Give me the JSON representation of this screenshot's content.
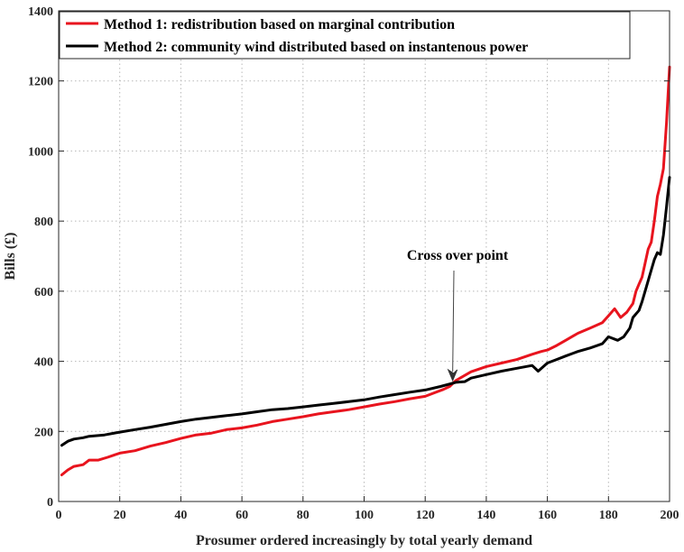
{
  "chart_data": {
    "type": "line",
    "xlabel": "Prosumer ordered increasingly by total yearly demand",
    "ylabel": "Bills (£)",
    "xlim": [
      0,
      200
    ],
    "ylim": [
      0,
      1400
    ],
    "xticks": [
      0,
      20,
      40,
      60,
      80,
      100,
      120,
      140,
      160,
      180,
      200
    ],
    "yticks": [
      0,
      200,
      400,
      600,
      800,
      1000,
      1200,
      1400
    ],
    "grid": true,
    "legend_position": "top-left",
    "series": [
      {
        "name": "Method 1: redistribution based on marginal contribution",
        "color": "#e8141e",
        "points": [
          [
            1,
            76
          ],
          [
            3,
            90
          ],
          [
            5,
            100
          ],
          [
            8,
            105
          ],
          [
            10,
            118
          ],
          [
            13,
            118
          ],
          [
            16,
            126
          ],
          [
            20,
            138
          ],
          [
            25,
            145
          ],
          [
            30,
            158
          ],
          [
            35,
            168
          ],
          [
            40,
            180
          ],
          [
            45,
            190
          ],
          [
            50,
            195
          ],
          [
            55,
            205
          ],
          [
            60,
            210
          ],
          [
            65,
            218
          ],
          [
            70,
            228
          ],
          [
            75,
            235
          ],
          [
            80,
            242
          ],
          [
            85,
            250
          ],
          [
            90,
            256
          ],
          [
            95,
            262
          ],
          [
            100,
            270
          ],
          [
            105,
            278
          ],
          [
            110,
            285
          ],
          [
            115,
            293
          ],
          [
            120,
            300
          ],
          [
            123,
            310
          ],
          [
            126,
            320
          ],
          [
            128,
            328
          ],
          [
            130,
            345
          ],
          [
            132,
            355
          ],
          [
            135,
            370
          ],
          [
            140,
            385
          ],
          [
            145,
            395
          ],
          [
            150,
            405
          ],
          [
            155,
            420
          ],
          [
            158,
            428
          ],
          [
            160,
            432
          ],
          [
            163,
            445
          ],
          [
            166,
            460
          ],
          [
            170,
            480
          ],
          [
            174,
            495
          ],
          [
            178,
            510
          ],
          [
            180,
            530
          ],
          [
            182,
            550
          ],
          [
            184,
            525
          ],
          [
            186,
            540
          ],
          [
            188,
            565
          ],
          [
            189,
            600
          ],
          [
            190,
            620
          ],
          [
            191,
            640
          ],
          [
            192,
            680
          ],
          [
            193,
            720
          ],
          [
            194,
            740
          ],
          [
            195,
            800
          ],
          [
            196,
            870
          ],
          [
            197,
            905
          ],
          [
            198,
            950
          ],
          [
            199,
            1080
          ],
          [
            200,
            1240
          ]
        ]
      },
      {
        "name": "Method 2: community wind distributed based on instantenous power",
        "color": "#000000",
        "points": [
          [
            1,
            160
          ],
          [
            3,
            172
          ],
          [
            5,
            178
          ],
          [
            8,
            182
          ],
          [
            10,
            186
          ],
          [
            15,
            190
          ],
          [
            20,
            198
          ],
          [
            25,
            205
          ],
          [
            30,
            212
          ],
          [
            35,
            220
          ],
          [
            40,
            228
          ],
          [
            45,
            235
          ],
          [
            50,
            240
          ],
          [
            55,
            245
          ],
          [
            60,
            250
          ],
          [
            65,
            256
          ],
          [
            70,
            262
          ],
          [
            75,
            265
          ],
          [
            80,
            270
          ],
          [
            85,
            275
          ],
          [
            90,
            280
          ],
          [
            95,
            285
          ],
          [
            100,
            290
          ],
          [
            105,
            298
          ],
          [
            110,
            305
          ],
          [
            115,
            312
          ],
          [
            120,
            318
          ],
          [
            125,
            328
          ],
          [
            130,
            340
          ],
          [
            133,
            342
          ],
          [
            135,
            352
          ],
          [
            140,
            362
          ],
          [
            145,
            372
          ],
          [
            150,
            380
          ],
          [
            155,
            388
          ],
          [
            157,
            372
          ],
          [
            160,
            395
          ],
          [
            163,
            405
          ],
          [
            166,
            415
          ],
          [
            170,
            428
          ],
          [
            174,
            438
          ],
          [
            178,
            450
          ],
          [
            180,
            470
          ],
          [
            183,
            460
          ],
          [
            185,
            470
          ],
          [
            187,
            495
          ],
          [
            188,
            525
          ],
          [
            190,
            545
          ],
          [
            191,
            570
          ],
          [
            192,
            600
          ],
          [
            193,
            630
          ],
          [
            194,
            660
          ],
          [
            195,
            690
          ],
          [
            196,
            710
          ],
          [
            197,
            705
          ],
          [
            198,
            760
          ],
          [
            199,
            840
          ],
          [
            200,
            925
          ]
        ]
      }
    ],
    "annotations": [
      {
        "text": "Cross over point",
        "point_x": 129,
        "point_y": 345
      }
    ]
  }
}
